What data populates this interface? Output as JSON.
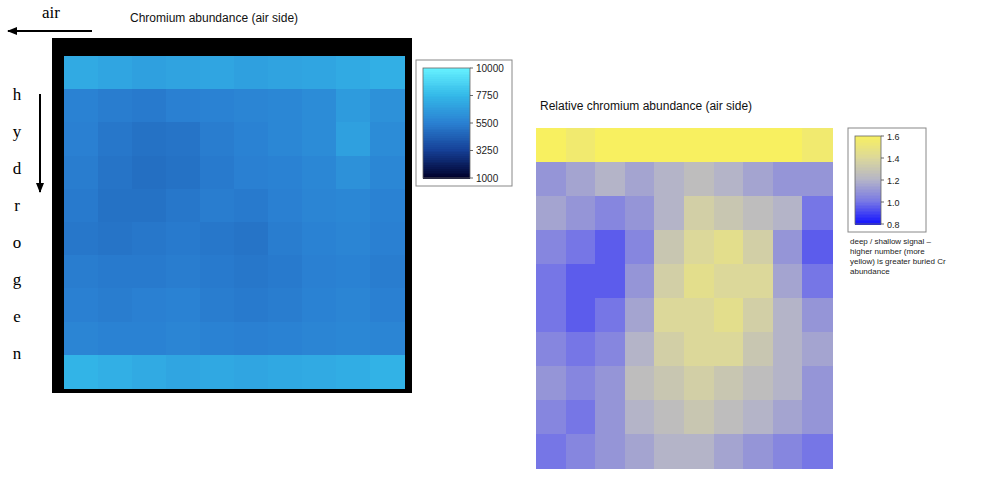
{
  "chart_data": [
    {
      "type": "heatmap",
      "title": "Chromium abundance (air side)",
      "annotations": [
        "air",
        "hydrogen"
      ],
      "cells": [
        [
          7200,
          7000,
          6800,
          6900,
          7000,
          6800,
          6900,
          7000,
          7200,
          7400
        ],
        [
          5600,
          5400,
          5300,
          5500,
          5600,
          5700,
          5800,
          6000,
          6600,
          6200
        ],
        [
          5500,
          5200,
          5000,
          5100,
          5400,
          5600,
          5800,
          6000,
          6800,
          6000
        ],
        [
          5400,
          5100,
          4900,
          5000,
          5300,
          5500,
          5600,
          5800,
          6200,
          5800
        ],
        [
          5300,
          5000,
          5000,
          5200,
          5400,
          5300,
          5500,
          5700,
          5800,
          5600
        ],
        [
          5200,
          5100,
          5200,
          5300,
          5200,
          5100,
          5400,
          5600,
          5700,
          5500
        ],
        [
          5400,
          5300,
          5300,
          5400,
          5300,
          5200,
          5300,
          5500,
          5600,
          5400
        ],
        [
          5500,
          5400,
          5500,
          5600,
          5400,
          5300,
          5400,
          5600,
          5700,
          5500
        ],
        [
          5700,
          5600,
          5600,
          5700,
          5600,
          5500,
          5600,
          5700,
          5800,
          5700
        ],
        [
          7600,
          7400,
          7200,
          7000,
          7100,
          7000,
          7100,
          7200,
          7300,
          7500
        ]
      ],
      "colorbar": {
        "range": [
          1000,
          10000
        ],
        "ticks": [
          10000,
          7750,
          5500,
          3250,
          1000
        ]
      },
      "tick_labels": false
    },
    {
      "type": "heatmap",
      "title": "Relative chromium abundance (air side)",
      "cells": [
        [
          1.6,
          1.55,
          1.6,
          1.6,
          1.6,
          1.6,
          1.6,
          1.6,
          1.6,
          1.55
        ],
        [
          1.1,
          1.15,
          1.2,
          1.15,
          1.2,
          1.25,
          1.2,
          1.15,
          1.1,
          1.1
        ],
        [
          1.15,
          1.1,
          1.05,
          1.1,
          1.2,
          1.35,
          1.3,
          1.25,
          1.2,
          1.0
        ],
        [
          1.05,
          1.0,
          0.95,
          1.05,
          1.3,
          1.4,
          1.45,
          1.35,
          1.1,
          0.95
        ],
        [
          1.0,
          0.95,
          0.95,
          1.1,
          1.35,
          1.45,
          1.4,
          1.4,
          1.15,
          1.0
        ],
        [
          1.0,
          0.95,
          1.0,
          1.15,
          1.4,
          1.4,
          1.45,
          1.35,
          1.2,
          1.1
        ],
        [
          1.05,
          1.0,
          1.05,
          1.2,
          1.35,
          1.4,
          1.4,
          1.3,
          1.2,
          1.15
        ],
        [
          1.1,
          1.05,
          1.1,
          1.25,
          1.3,
          1.35,
          1.3,
          1.25,
          1.2,
          1.1
        ],
        [
          1.05,
          1.0,
          1.1,
          1.2,
          1.25,
          1.3,
          1.25,
          1.2,
          1.15,
          1.1
        ],
        [
          1.0,
          1.05,
          1.1,
          1.15,
          1.2,
          1.2,
          1.15,
          1.1,
          1.05,
          1.0
        ]
      ],
      "colorbar": {
        "range": [
          0.8,
          1.6
        ],
        "ticks": [
          1.6,
          1.4,
          1.2,
          {
            "value": 1,
            "label": "1.0"
          },
          0.8
        ]
      },
      "caption": "deep / shallow signal – higher number (more yellow) is greater buried Cr abundance",
      "tick_labels": false
    }
  ]
}
